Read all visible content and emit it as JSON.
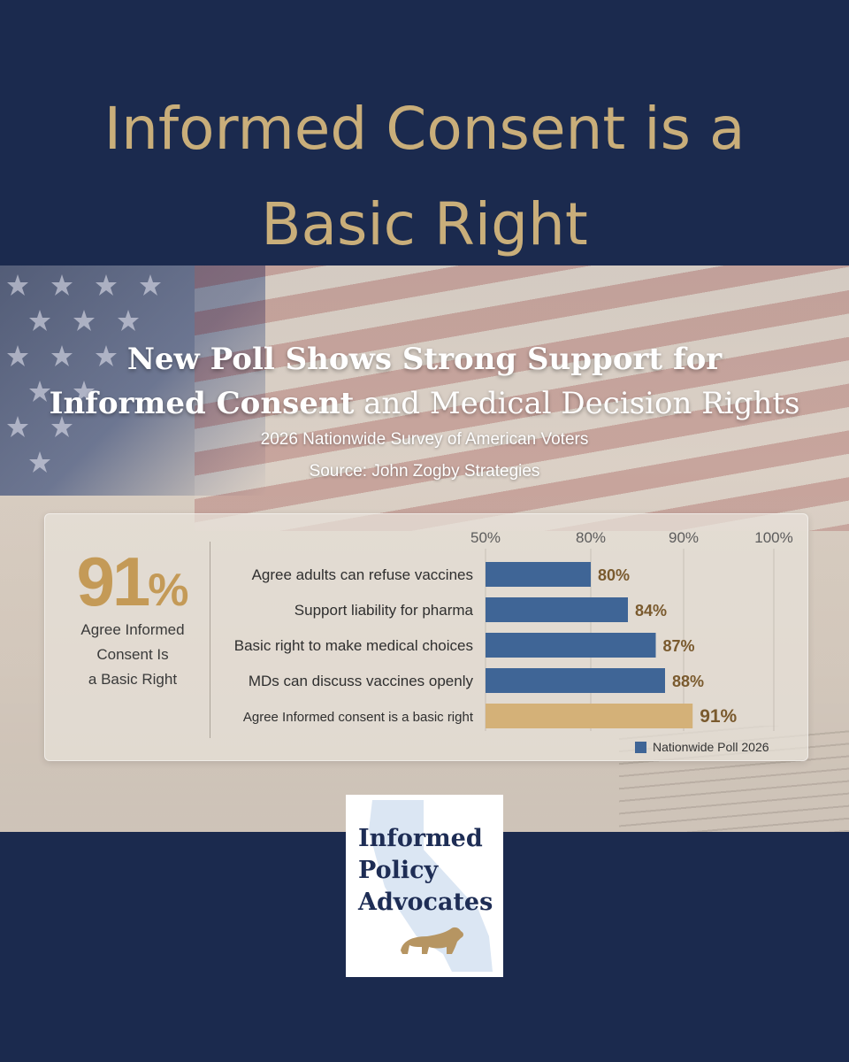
{
  "headline": {
    "line1": "Informed Consent is a",
    "line2": "Basic Right"
  },
  "poll": {
    "title_line1": "New Poll Shows Strong Support for",
    "title_line2_bold": "Informed Consent",
    "title_line2_rest": " and Medical Decision Rights",
    "subtitle": "2026 Nationwide Survey of American Voters",
    "source": "Source: John Zogby Strategies"
  },
  "highlight": {
    "value": "91",
    "symbol": "%",
    "caption_line1": "Agree Informed",
    "caption_line2": "Consent Is",
    "caption_line3": "a Basic Right"
  },
  "chart_data": {
    "type": "bar",
    "orientation": "horizontal",
    "x_ticks": [
      "50%",
      "80%",
      "90%",
      "100%"
    ],
    "categories": [
      "Agree adults can refuse vaccines",
      "Support liability for pharma",
      "Basic right to make medical choices",
      "MDs can discuss vaccines openly",
      "Agree Informed consent is a basic right"
    ],
    "values": [
      80,
      84,
      87,
      88,
      91
    ],
    "value_labels": [
      "80%",
      "84%",
      "87%",
      "88%",
      "91%"
    ],
    "highlight_index": 4,
    "legend": "Nationwide Poll 2026",
    "legend_position": "bottom-right",
    "colors": {
      "bar": "#3f6596",
      "highlight": "#d4b178",
      "value_label": "#7a5a2e"
    }
  },
  "logo": {
    "line1": "Informed",
    "line2": "Policy",
    "line3": "Advocates",
    "colors": {
      "text": "#1e2d55",
      "state_shape": "#dbe6f3",
      "bear": "#b69562"
    }
  },
  "colors": {
    "background": "#1b2a4e",
    "headline": "#c9ae7a",
    "big_percent": "#c49a57"
  }
}
